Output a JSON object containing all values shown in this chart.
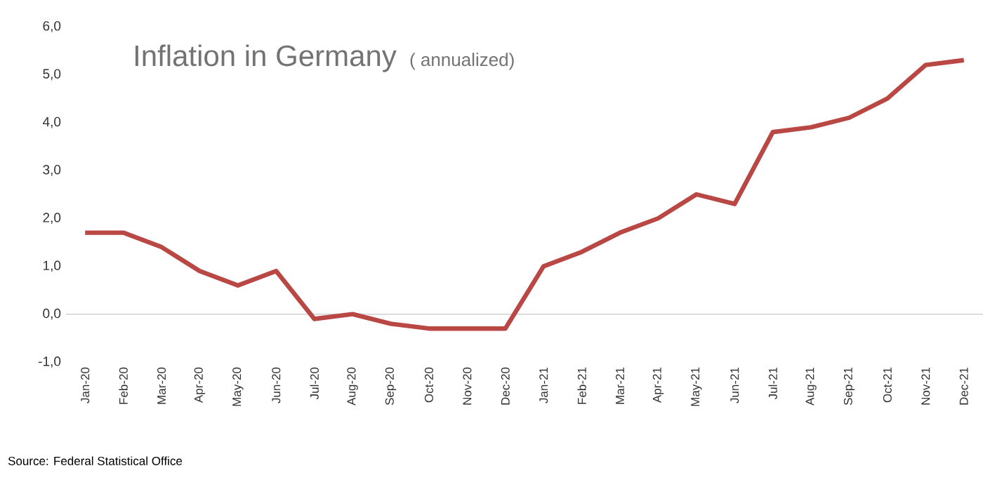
{
  "chart_data": {
    "type": "line",
    "title": "Inflation in Germany",
    "subtitle": "( annualized)",
    "categories": [
      "Jan-20",
      "Feb-20",
      "Mar-20",
      "Apr-20",
      "May-20",
      "Jun-20",
      "Jul-20",
      "Aug-20",
      "Sep-20",
      "Oct-20",
      "Nov-20",
      "Dec-20",
      "Jan-21",
      "Feb-21",
      "Mar-21",
      "Apr-21",
      "May-21",
      "Jun-21",
      "Jul-21",
      "Aug-21",
      "Sep-21",
      "Oct-21",
      "Nov-21",
      "Dec-21"
    ],
    "series": [
      {
        "color": "#b94744",
        "values": [
          1.7,
          1.7,
          1.4,
          0.9,
          0.6,
          0.9,
          -0.1,
          0.0,
          -0.2,
          -0.3,
          -0.3,
          -0.3,
          1.0,
          1.3,
          1.7,
          2.0,
          2.5,
          2.3,
          3.8,
          3.9,
          4.1,
          4.5,
          5.2,
          5.3
        ]
      }
    ],
    "ylim": [
      -1,
      6
    ],
    "yticks": [
      {
        "value": -1,
        "label": "-1,0"
      },
      {
        "value": 0,
        "label": "0,0"
      },
      {
        "value": 1,
        "label": "1,0"
      },
      {
        "value": 2,
        "label": "2,0"
      },
      {
        "value": 3,
        "label": "3,0"
      },
      {
        "value": 4,
        "label": "4,0"
      },
      {
        "value": 5,
        "label": "5,0"
      },
      {
        "value": 6,
        "label": "6,0"
      }
    ],
    "ref_lines": [
      {
        "axis": "y",
        "value": 0,
        "color": "#d0d0d0"
      }
    ],
    "marker": "none",
    "line_style": "solid",
    "annotations": [
      "Source: Federal Statistical Office"
    ]
  }
}
